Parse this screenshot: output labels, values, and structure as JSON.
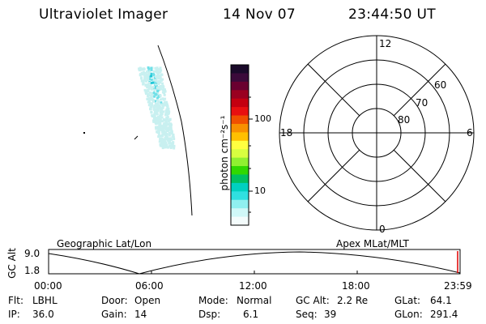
{
  "header": {
    "title": "Ultraviolet Imager",
    "date": "14 Nov 07",
    "time": "23:44:50 UT"
  },
  "colorbar": {
    "unit_label": "photon cm⁻²s⁻¹",
    "ticks": [
      "100",
      "10"
    ],
    "colors": [
      "#1a0a2a",
      "#3b0a3a",
      "#6a0030",
      "#9a0020",
      "#c40010",
      "#e81010",
      "#f05000",
      "#f89000",
      "#ffc000",
      "#ffff40",
      "#d8ff40",
      "#90f030",
      "#30d800",
      "#00c060",
      "#00d0c0",
      "#30e0e0",
      "#90f0f0",
      "#d0f8f8",
      "#f4fcfc"
    ]
  },
  "polar_plot": {
    "labels": {
      "top": "12",
      "left": "18",
      "right": "6",
      "bottom": "0",
      "lat60": "60",
      "lat70": "70",
      "lat80": "80"
    }
  },
  "orbit_plot": {
    "left_title": "Geographic Lat/Lon",
    "right_title": "Apex MLat/MLT",
    "ylabel": "GC Alt",
    "yticks": [
      "9.0",
      "1.8"
    ],
    "xticks": [
      "00:00",
      "06:00",
      "12:00",
      "18:00",
      "23:59"
    ]
  },
  "info": {
    "filter_label": "Flt:",
    "filter_value": "LBHL",
    "ip_label": "IP:",
    "ip_value": "36.0",
    "door_label": "Door:",
    "door_value": "Open",
    "gain_label": "Gain:",
    "gain_value": "14",
    "mode_label": "Mode:",
    "mode_value": "Normal",
    "dsp_label": "Dsp:",
    "dsp_value": "6.1",
    "gcalt_label": "GC Alt:",
    "gcalt_value": "2.2 Re",
    "seq_label": "Seq:",
    "seq_value": "39",
    "glat_label": "GLat:",
    "glat_value": "64.1",
    "glon_label": "GLon:",
    "glon_value": "291.4"
  },
  "colors": {
    "aurora_light": "#c8f0f0",
    "aurora_mid": "#70e0e8",
    "aurora_core": "#20c8d8",
    "marker": "#e00000"
  }
}
